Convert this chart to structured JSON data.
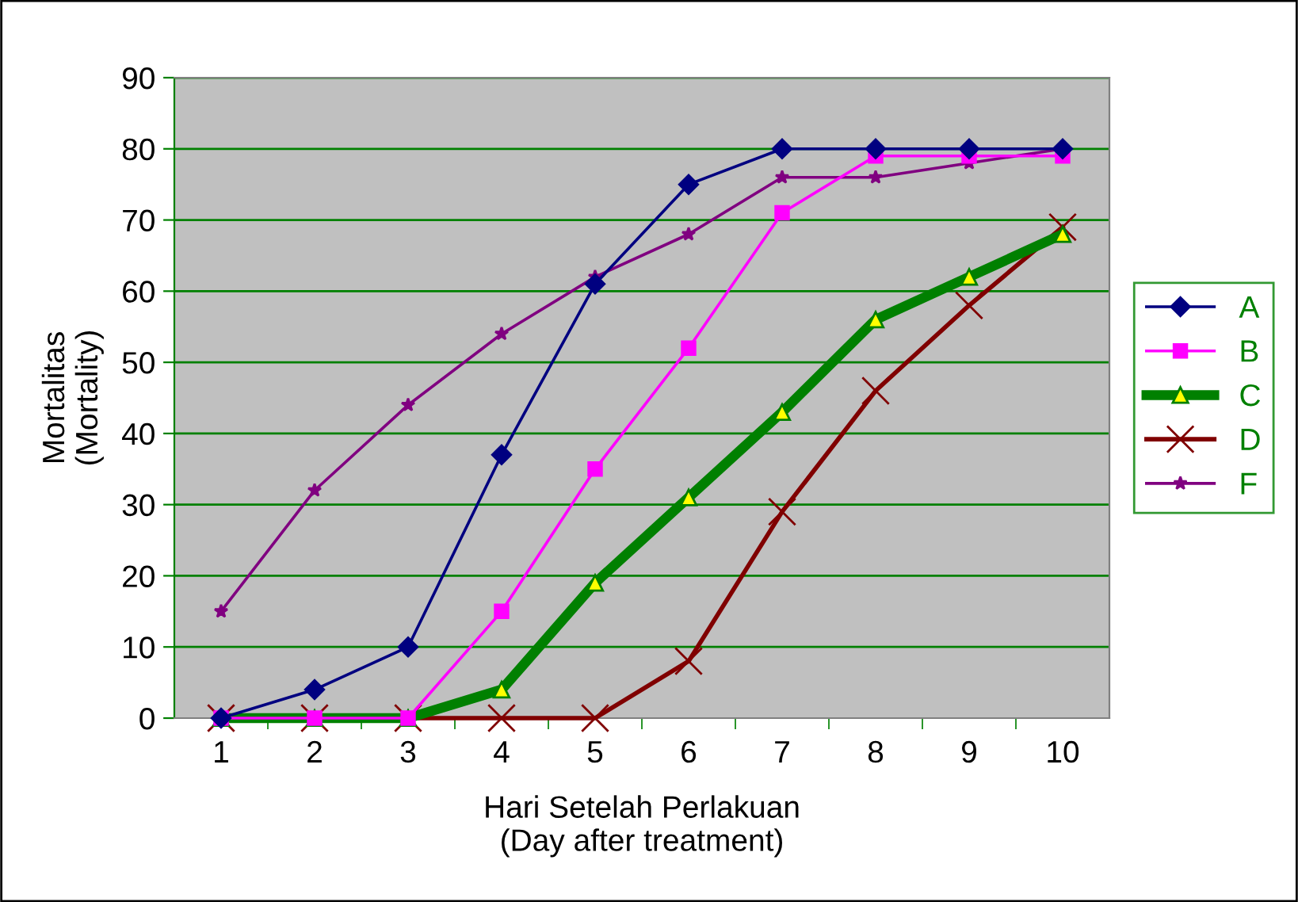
{
  "chart_data": {
    "type": "line",
    "xlabel": "Hari Setelah Perlakuan\n(Day after treatment)",
    "ylabel": "Mortalitas\n(Mortality)",
    "categories": [
      "1",
      "2",
      "3",
      "4",
      "5",
      "6",
      "7",
      "8",
      "9",
      "10"
    ],
    "series": [
      {
        "name": "A",
        "color": "#000080",
        "marker": "diamond",
        "values": [
          0,
          4,
          10,
          37,
          61,
          75,
          80,
          80,
          80,
          80
        ]
      },
      {
        "name": "B",
        "color": "#ff00ff",
        "marker": "square",
        "values": [
          0,
          0,
          0,
          15,
          35,
          52,
          71,
          79,
          79,
          79
        ]
      },
      {
        "name": "C",
        "color": "#008000",
        "marker": "triangle",
        "values": [
          0,
          0,
          0,
          4,
          19,
          31,
          43,
          56,
          62,
          68
        ]
      },
      {
        "name": "D",
        "color": "#800000",
        "marker": "cross",
        "values": [
          0,
          0,
          0,
          0,
          0,
          8,
          29,
          46,
          58,
          69
        ]
      },
      {
        "name": "F",
        "color": "#800080",
        "marker": "star",
        "values": [
          15,
          32,
          44,
          54,
          62,
          68,
          76,
          76,
          78,
          80
        ]
      }
    ],
    "ylim": [
      0,
      90
    ],
    "yticks": [
      0,
      10,
      20,
      30,
      40,
      50,
      60,
      70,
      80,
      90
    ],
    "grid": "y",
    "legend": "right"
  }
}
